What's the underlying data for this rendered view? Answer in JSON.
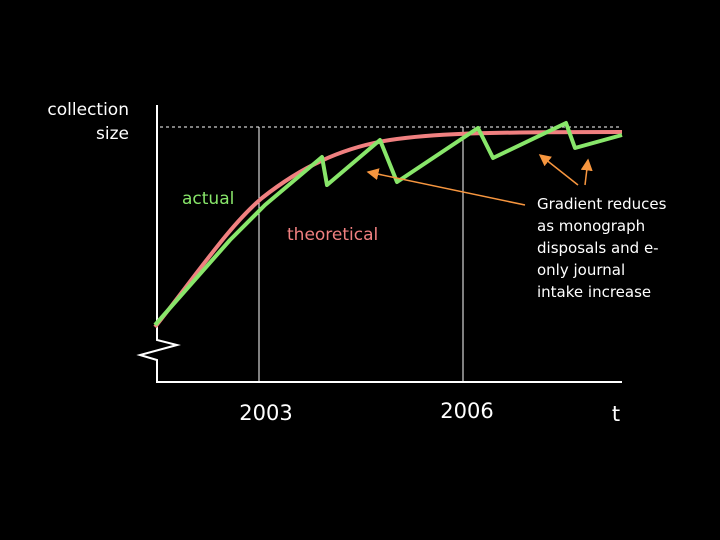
{
  "axis": {
    "y_label_lines": [
      "collection",
      "size"
    ],
    "x_labels": [
      "2003",
      "2006"
    ],
    "x_end_label": "t"
  },
  "curves": {
    "actual": "actual",
    "theoretical": "theoretical"
  },
  "annotation": {
    "lines": [
      "Gradient reduces",
      "as monograph",
      "disposals and e-",
      "only journal",
      "intake increase"
    ]
  }
}
